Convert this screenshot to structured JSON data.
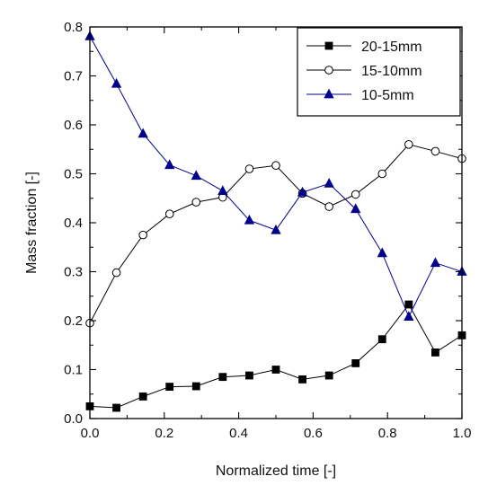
{
  "chart_data": {
    "type": "line",
    "xlabel": "Normalized time  [-]",
    "ylabel": "Mass fraction  [-]",
    "xlim": [
      0.0,
      1.0
    ],
    "ylim": [
      0.0,
      0.8
    ],
    "xticks": [
      0.0,
      0.2,
      0.4,
      0.6,
      0.8,
      1.0
    ],
    "yticks": [
      0.0,
      0.1,
      0.2,
      0.3,
      0.4,
      0.5,
      0.6,
      0.7,
      0.8
    ],
    "xtick_labels": [
      "0.0",
      "0.2",
      "0.4",
      "0.6",
      "0.8",
      "1.0"
    ],
    "ytick_labels": [
      "0.0",
      "0.1",
      "0.2",
      "0.3",
      "0.4",
      "0.5",
      "0.6",
      "0.7",
      "0.8"
    ],
    "grid": false,
    "legend_position": "top-right",
    "x": [
      0.0,
      0.0714,
      0.1429,
      0.2143,
      0.2857,
      0.3571,
      0.4286,
      0.5,
      0.5714,
      0.6429,
      0.7143,
      0.7857,
      0.8571,
      0.9286,
      1.0
    ],
    "series": [
      {
        "name": "20-15mm",
        "marker": "filled-square",
        "color": "#000000",
        "values": [
          0.025,
          0.022,
          0.045,
          0.065,
          0.066,
          0.085,
          0.088,
          0.1,
          0.08,
          0.088,
          0.113,
          0.162,
          0.233,
          0.135,
          0.17
        ]
      },
      {
        "name": "15-10mm",
        "marker": "open-circle",
        "color": "#000000",
        "values": [
          0.195,
          0.298,
          0.375,
          0.418,
          0.442,
          0.452,
          0.51,
          0.517,
          0.46,
          0.433,
          0.458,
          0.5,
          0.56,
          0.546,
          0.531
        ]
      },
      {
        "name": "10-5mm",
        "marker": "filled-triangle",
        "color": "#00008B",
        "values": [
          0.781,
          0.684,
          0.582,
          0.518,
          0.496,
          0.465,
          0.405,
          0.385,
          0.462,
          0.48,
          0.428,
          0.338,
          0.208,
          0.318,
          0.3
        ]
      }
    ]
  }
}
